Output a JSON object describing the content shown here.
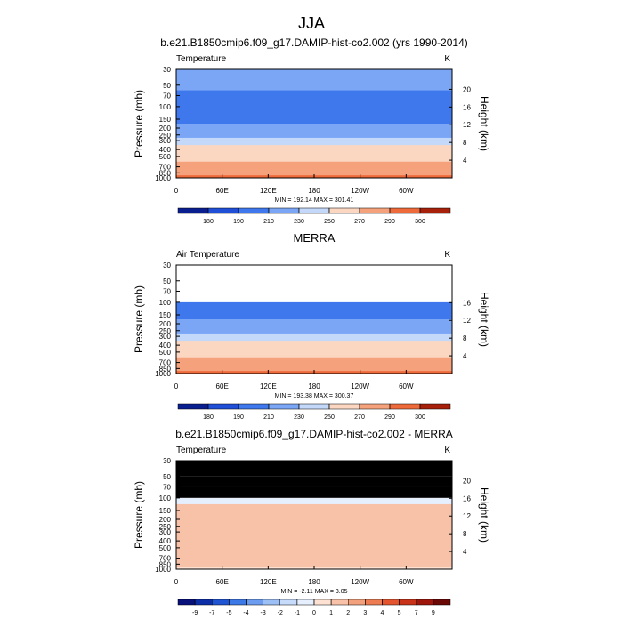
{
  "suptitle": "JJA",
  "chart_data": [
    {
      "type": "contour",
      "title": "b.e21.B1850cmip6.f09_g17.DAMIP-hist-co2.002 (yrs 1990-2014)",
      "left_label": "Temperature",
      "right_label": "K",
      "stats": "MIN = 192.14  MAX = 301.41",
      "ylabel": "Pressure (mb)",
      "y2label": "Height (km)",
      "log_scale": true,
      "xlim": [
        0,
        360
      ],
      "xticks": [
        0,
        {
          "value": 60,
          "label": "60E"
        },
        {
          "value": 120,
          "label": "120E"
        },
        180,
        {
          "value": 240,
          "label": "120W"
        },
        {
          "value": 300,
          "label": "60W"
        }
      ],
      "ylim": [
        30,
        1000
      ],
      "yticks": [
        30,
        50,
        70,
        100,
        150,
        200,
        250,
        300,
        400,
        500,
        700,
        850,
        1000
      ],
      "y2lim": [
        0,
        24.5
      ],
      "y2ticks": [
        4,
        8,
        12,
        16,
        20
      ],
      "missing_color": "#ffffff",
      "field": {
        "pressure": [
          30,
          50,
          70,
          100,
          150,
          200,
          250,
          300,
          400,
          500,
          700,
          850,
          1000
        ],
        "values": [
          228,
          218,
          208,
          198,
          208,
          218,
          226,
          236,
          250,
          262,
          278,
          288,
          296
        ]
      },
      "levels": [
        180,
        190,
        210,
        230,
        250,
        270,
        290,
        300
      ],
      "colors": [
        "#0a1f8f",
        "#1f4fd6",
        "#3f78ec",
        "#7aa6f5",
        "#c4d8fa",
        "#fbd7c2",
        "#f5a27c",
        "#ef6a3a",
        "#a6200a"
      ]
    },
    {
      "type": "contour",
      "title": "MERRA",
      "left_label": "Air Temperature",
      "right_label": "K",
      "stats": "MIN = 193.38  MAX = 300.37",
      "ylabel": "Pressure (mb)",
      "y2label": "Height (km)",
      "log_scale": true,
      "xlim": [
        0,
        360
      ],
      "xticks": [
        0,
        {
          "value": 60,
          "label": "60E"
        },
        {
          "value": 120,
          "label": "120E"
        },
        180,
        {
          "value": 240,
          "label": "120W"
        },
        {
          "value": 300,
          "label": "60W"
        }
      ],
      "ylim": [
        30,
        1000
      ],
      "yticks": [
        30,
        50,
        70,
        100,
        150,
        200,
        250,
        300,
        400,
        500,
        700,
        850,
        1000
      ],
      "y2lim": [
        0,
        24.5
      ],
      "y2ticks": [
        4,
        8,
        12,
        16
      ],
      "missing_color": "#ffffff",
      "field": {
        "pressure": [
          30,
          50,
          70,
          100,
          150,
          200,
          250,
          300,
          400,
          500,
          700,
          850,
          1000
        ],
        "values": [
          null,
          null,
          null,
          198,
          208,
          218,
          226,
          236,
          250,
          262,
          278,
          288,
          296
        ]
      },
      "levels": [
        180,
        190,
        210,
        230,
        250,
        270,
        290,
        300
      ],
      "colors": [
        "#0a1f8f",
        "#1f4fd6",
        "#3f78ec",
        "#7aa6f5",
        "#c4d8fa",
        "#fbd7c2",
        "#f5a27c",
        "#ef6a3a",
        "#a6200a"
      ]
    },
    {
      "type": "contour",
      "title": "b.e21.B1850cmip6.f09_g17.DAMIP-hist-co2.002 - MERRA",
      "left_label": "Temperature",
      "right_label": "K",
      "stats": "MIN = -2.11  MAX = 3.05",
      "ylabel": "Pressure (mb)",
      "y2label": "Height (km)",
      "log_scale": true,
      "xlim": [
        0,
        360
      ],
      "xticks": [
        0,
        {
          "value": 60,
          "label": "60E"
        },
        {
          "value": 120,
          "label": "120E"
        },
        180,
        {
          "value": 240,
          "label": "120W"
        },
        {
          "value": 300,
          "label": "60W"
        }
      ],
      "ylim": [
        30,
        1000
      ],
      "yticks": [
        30,
        50,
        70,
        100,
        150,
        200,
        250,
        300,
        400,
        500,
        700,
        850,
        1000
      ],
      "y2lim": [
        0,
        24.5
      ],
      "y2ticks": [
        4,
        8,
        12,
        16,
        20
      ],
      "missing_color": "#000000",
      "field": {
        "pressure": [
          30,
          50,
          70,
          100,
          150,
          200,
          250,
          300,
          400,
          500,
          700,
          850,
          1000
        ],
        "values": [
          null,
          null,
          null,
          -0.5,
          1.5,
          1.5,
          1.2,
          1.5,
          1.5,
          1.5,
          1.5,
          1.2,
          0.5
        ]
      },
      "levels": [
        -9,
        -7,
        -5,
        -4,
        -3,
        -2,
        -1,
        0,
        1,
        2,
        3,
        4,
        5,
        7,
        9
      ],
      "colors": [
        "#08107a",
        "#0c2fa8",
        "#1f55d2",
        "#3c78e6",
        "#6b9cf0",
        "#9cbff6",
        "#c6dafa",
        "#e6effd",
        "#fde2d4",
        "#f8c2a8",
        "#f3a07c",
        "#ee7c52",
        "#e4552f",
        "#c8331a",
        "#9e160b",
        "#6a0806"
      ]
    }
  ]
}
